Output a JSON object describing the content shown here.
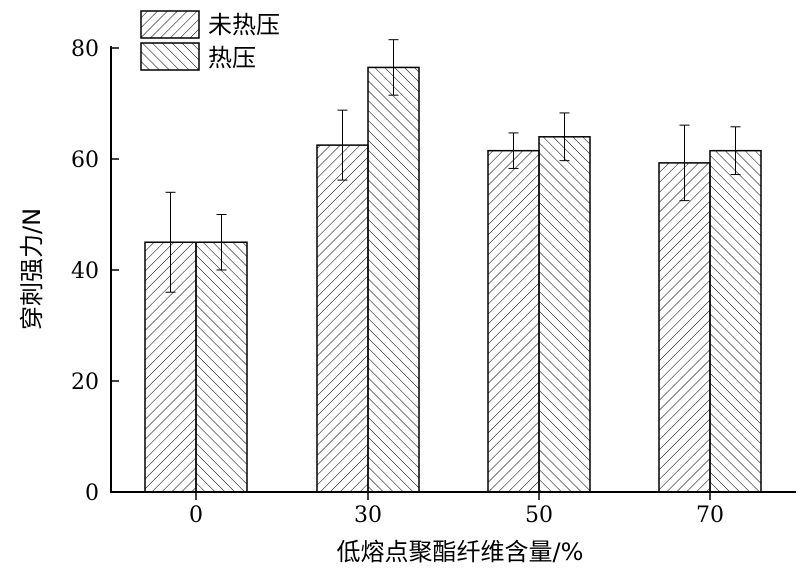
{
  "chart_data": {
    "type": "bar",
    "categories": [
      "0",
      "30",
      "50",
      "70"
    ],
    "series": [
      {
        "name": "未热压",
        "values": [
          45,
          62.5,
          61.5,
          59.3
        ],
        "errors": [
          9,
          6.3,
          3.2,
          6.8
        ],
        "hatch": "forward-diagonal"
      },
      {
        "name": "热压",
        "values": [
          45,
          76.5,
          64,
          61.5
        ],
        "errors": [
          5,
          5,
          4.3,
          4.3
        ],
        "hatch": "backward-diagonal"
      }
    ],
    "xlabel": "低熔点聚酯纤维含量/%",
    "ylabel": "穿刺强力/N",
    "ylim": [
      0,
      80
    ],
    "yticks": [
      "0",
      "20",
      "40",
      "60",
      "80"
    ],
    "grid": false,
    "legend_position": "top-left"
  }
}
